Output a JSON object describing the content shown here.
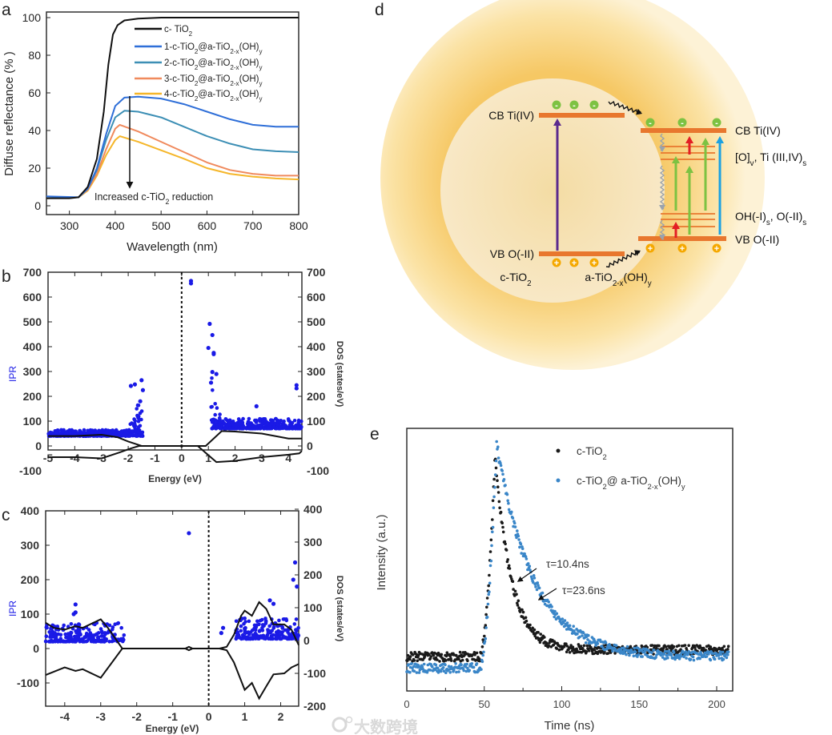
{
  "panel_letters": {
    "a": "a",
    "b": "b",
    "c": "c",
    "d": "d",
    "e": "e"
  },
  "watermark": "大数跨境",
  "chart_data": [
    {
      "id": "a",
      "type": "line",
      "xlabel": "Wavelength (nm)",
      "ylabel": "Diffuse reflectance (% )",
      "xlim": [
        250,
        800
      ],
      "ylim": [
        -5,
        103
      ],
      "xticks": [
        300,
        400,
        500,
        600,
        700,
        800
      ],
      "yticks": [
        0,
        20,
        40,
        60,
        80,
        100
      ],
      "legend_position": "top-right",
      "annotation": [
        [
          "Increased c-TiO",
          ""
        ],
        [
          "2",
          "sub"
        ],
        [
          " reduction",
          ""
        ]
      ],
      "series": [
        {
          "name": [
            [
              "c- TiO",
              ""
            ],
            [
              "2",
              "sub"
            ]
          ],
          "color": "#111111",
          "points": [
            [
              250,
              4
            ],
            [
              300,
              4
            ],
            [
              320,
              4.5
            ],
            [
              340,
              10
            ],
            [
              360,
              25
            ],
            [
              375,
              50
            ],
            [
              385,
              75
            ],
            [
              395,
              91
            ],
            [
              405,
              96
            ],
            [
              420,
              98.5
            ],
            [
              450,
              99.5
            ],
            [
              500,
              100
            ],
            [
              650,
              100
            ],
            [
              800,
              100
            ]
          ]
        },
        {
          "name": [
            [
              "1-c-TiO",
              ""
            ],
            [
              "2",
              "sub"
            ],
            [
              "@a-TiO",
              ""
            ],
            [
              "2-x",
              "sub"
            ],
            [
              "(OH)",
              ""
            ],
            [
              "y",
              "sub"
            ]
          ],
          "color": "#2f6fd8",
          "points": [
            [
              250,
              5
            ],
            [
              320,
              4.5
            ],
            [
              340,
              9
            ],
            [
              360,
              20
            ],
            [
              380,
              38
            ],
            [
              400,
              53
            ],
            [
              420,
              57.5
            ],
            [
              450,
              58
            ],
            [
              500,
              57
            ],
            [
              550,
              54
            ],
            [
              600,
              50
            ],
            [
              650,
              46
            ],
            [
              700,
              43
            ],
            [
              750,
              42
            ],
            [
              800,
              42
            ]
          ]
        },
        {
          "name": [
            [
              "2-c-TiO",
              ""
            ],
            [
              "2",
              "sub"
            ],
            [
              "@a-TiO",
              ""
            ],
            [
              "2-x",
              "sub"
            ],
            [
              "(OH)",
              ""
            ],
            [
              "y",
              "sub"
            ]
          ],
          "color": "#3d8fb5",
          "points": [
            [
              250,
              4
            ],
            [
              320,
              4.5
            ],
            [
              340,
              9
            ],
            [
              360,
              19
            ],
            [
              380,
              35
            ],
            [
              400,
              47
            ],
            [
              420,
              50.5
            ],
            [
              450,
              50
            ],
            [
              500,
              47
            ],
            [
              550,
              42
            ],
            [
              600,
              37
            ],
            [
              650,
              33
            ],
            [
              700,
              30
            ],
            [
              750,
              29
            ],
            [
              800,
              28.5
            ]
          ]
        },
        {
          "name": [
            [
              "3-c-TiO",
              ""
            ],
            [
              "2",
              "sub"
            ],
            [
              "@a-TiO",
              ""
            ],
            [
              "2-x",
              "sub"
            ],
            [
              "(OH)",
              ""
            ],
            [
              "y",
              "sub"
            ]
          ],
          "color": "#f08a5d",
          "points": [
            [
              250,
              4
            ],
            [
              320,
              4.5
            ],
            [
              340,
              8.5
            ],
            [
              360,
              17
            ],
            [
              380,
              30
            ],
            [
              400,
              41
            ],
            [
              410,
              43
            ],
            [
              450,
              39.5
            ],
            [
              500,
              34
            ],
            [
              550,
              28.5
            ],
            [
              600,
              23
            ],
            [
              650,
              19
            ],
            [
              700,
              17
            ],
            [
              750,
              16
            ],
            [
              800,
              16
            ]
          ]
        },
        {
          "name": [
            [
              "4-c-TiO",
              ""
            ],
            [
              "2",
              "sub"
            ],
            [
              "@a-TiO",
              ""
            ],
            [
              "2-x",
              "sub"
            ],
            [
              "(OH)",
              ""
            ],
            [
              "y",
              "sub"
            ]
          ],
          "color": "#f5b62a",
          "points": [
            [
              250,
              4
            ],
            [
              320,
              4.5
            ],
            [
              340,
              8
            ],
            [
              360,
              16
            ],
            [
              380,
              27
            ],
            [
              400,
              35
            ],
            [
              410,
              37
            ],
            [
              450,
              34
            ],
            [
              500,
              29.5
            ],
            [
              550,
              25
            ],
            [
              600,
              20
            ],
            [
              650,
              17
            ],
            [
              700,
              15.5
            ],
            [
              750,
              14.5
            ],
            [
              800,
              14
            ]
          ]
        }
      ]
    },
    {
      "id": "b",
      "type": "scatter",
      "xlabel": "Energy (eV)",
      "ylabel_left": "IPR",
      "ylabel_right": "DOS (states/eV)",
      "xlim": [
        -5,
        4.5
      ],
      "ylim": [
        -17,
        700
      ],
      "xticks": [
        -5,
        -4,
        -3,
        -2,
        -1,
        0,
        1,
        2,
        3,
        4
      ],
      "yticks": [
        -100,
        0,
        100,
        200,
        300,
        400,
        500,
        600,
        700
      ],
      "fermi_level": 0,
      "ipr_color": "#1a1ae6",
      "ipr_bands": [
        {
          "from": -5,
          "to": -1.45,
          "base": 40,
          "spread": 25,
          "rise_to": 230,
          "rise_start": -2.3,
          "rise_side": "right"
        },
        {
          "from": 1.1,
          "to": 4.5,
          "base": 70,
          "spread": 40,
          "rise_to": 280,
          "rise_start": 1.6,
          "rise_side": "left"
        }
      ],
      "ipr_outliers": [
        [
          0.35,
          665
        ],
        [
          0.35,
          655
        ],
        [
          1.05,
          492
        ],
        [
          1.15,
          447
        ],
        [
          1.0,
          395
        ],
        [
          1.2,
          375
        ],
        [
          1.2,
          370
        ],
        [
          1.15,
          298
        ],
        [
          1.3,
          290
        ],
        [
          1.1,
          255
        ],
        [
          -1.5,
          265
        ],
        [
          -1.75,
          248
        ],
        [
          -1.9,
          242
        ],
        [
          -1.45,
          225
        ],
        [
          -1.55,
          180
        ],
        [
          4.3,
          245
        ],
        [
          4.3,
          232
        ],
        [
          2.8,
          160
        ]
      ],
      "dos_up": [
        [
          -5,
          40
        ],
        [
          -4,
          40
        ],
        [
          -3,
          45
        ],
        [
          -2.4,
          35
        ],
        [
          -2,
          18
        ],
        [
          -1.6,
          4
        ],
        [
          -1.5,
          0
        ],
        [
          -0.05,
          0
        ],
        [
          0,
          3
        ],
        [
          0.05,
          0
        ],
        [
          0.9,
          0
        ],
        [
          1.5,
          60
        ],
        [
          2,
          58
        ],
        [
          3,
          50
        ],
        [
          4,
          30
        ],
        [
          4.5,
          30
        ]
      ],
      "dos_down": [
        [
          -5,
          -45
        ],
        [
          -4,
          -45
        ],
        [
          -3,
          -50
        ],
        [
          -2.3,
          -25
        ],
        [
          -1.9,
          -10
        ],
        [
          -1.6,
          0
        ],
        [
          -0.05,
          0
        ],
        [
          0,
          -3
        ],
        [
          0.05,
          0
        ],
        [
          0.6,
          0
        ],
        [
          1.3,
          -65
        ],
        [
          2,
          -60
        ],
        [
          3,
          -45
        ],
        [
          4,
          -35
        ],
        [
          4.4,
          -30
        ],
        [
          4.5,
          -20
        ]
      ]
    },
    {
      "id": "c",
      "type": "scatter",
      "xlabel": "Energy (eV)",
      "ylabel_left": "IPR",
      "ylabel_right": "DOS (states/eV)",
      "xlim": [
        -4.53,
        2.5
      ],
      "ylim": [
        -167,
        400
      ],
      "xticks": [
        -4,
        -3,
        -2,
        -1,
        0,
        1,
        2
      ],
      "yticks_left": [
        -100,
        0,
        100,
        200,
        300,
        400
      ],
      "yticks_right": [
        -200,
        -100,
        0,
        100,
        200,
        300,
        400
      ],
      "fermi_level": 0,
      "ipr_color": "#1a1ae6",
      "ipr_bands": [
        {
          "from": -4.53,
          "to": -2.35,
          "base": 20,
          "spread": 55
        },
        {
          "from": 0.75,
          "to": 2.5,
          "base": 28,
          "spread": 60
        }
      ],
      "ipr_outliers": [
        [
          -0.55,
          335
        ],
        [
          2.4,
          250
        ],
        [
          2.35,
          200
        ],
        [
          2.45,
          180
        ],
        [
          -3.7,
          128
        ],
        [
          -3.7,
          105
        ],
        [
          -3.75,
          100
        ],
        [
          0.35,
          45
        ],
        [
          0.4,
          60
        ],
        [
          1.7,
          140
        ],
        [
          1.8,
          130
        ]
      ],
      "dos_up": [
        [
          -4.53,
          75
        ],
        [
          -4.3,
          60
        ],
        [
          -4,
          55
        ],
        [
          -3.7,
          65
        ],
        [
          -3.5,
          60
        ],
        [
          -3,
          85
        ],
        [
          -2.8,
          60
        ],
        [
          -2.4,
          0
        ],
        [
          -0.65,
          0
        ],
        [
          -0.55,
          5
        ],
        [
          -0.45,
          0
        ],
        [
          0.3,
          0
        ],
        [
          0.5,
          5
        ],
        [
          0.7,
          40
        ],
        [
          0.9,
          95
        ],
        [
          1,
          110
        ],
        [
          1.2,
          95
        ],
        [
          1.4,
          135
        ],
        [
          1.6,
          115
        ],
        [
          1.8,
          70
        ],
        [
          2.1,
          70
        ],
        [
          2.3,
          55
        ],
        [
          2.5,
          10
        ]
      ],
      "dos_down": [
        [
          -4.53,
          -77
        ],
        [
          -4,
          -55
        ],
        [
          -3.7,
          -65
        ],
        [
          -3.5,
          -60
        ],
        [
          -3,
          -85
        ],
        [
          -2.4,
          0
        ],
        [
          -0.65,
          0
        ],
        [
          -0.55,
          -5
        ],
        [
          -0.45,
          0
        ],
        [
          0.3,
          0
        ],
        [
          0.5,
          -5
        ],
        [
          0.7,
          -40
        ],
        [
          1,
          -120
        ],
        [
          1.2,
          -100
        ],
        [
          1.4,
          -145
        ],
        [
          1.6,
          -110
        ],
        [
          1.8,
          -75
        ],
        [
          2.1,
          -72
        ],
        [
          2.3,
          -55
        ],
        [
          2.5,
          -45
        ]
      ]
    },
    {
      "id": "e",
      "type": "scatter",
      "xlabel": "Time (ns)",
      "ylabel": "Intensity (a.u.)",
      "xlim": [
        0,
        210
      ],
      "ylim": [
        -0.1,
        1.05
      ],
      "xticks": [
        0,
        50,
        100,
        150,
        200
      ],
      "legend_position": "top-right",
      "series": [
        {
          "name": [
            [
              "c-TiO",
              ""
            ],
            [
              "2",
              "sub"
            ]
          ],
          "color": "#1a1a1a",
          "baseline": 0.05,
          "tail": 0.08,
          "peak_time": 57,
          "peak": 0.93,
          "rise_start": 47,
          "tau_ns": 10.4
        },
        {
          "name": [
            [
              "c-TiO",
              ""
            ],
            [
              "2",
              "sub"
            ],
            [
              "@ a-TiO",
              ""
            ],
            [
              "2-x",
              "sub"
            ],
            [
              "(OH)",
              ""
            ],
            [
              "y",
              "sub"
            ]
          ],
          "color": "#3a86c8",
          "baseline": 0.0,
          "tail": 0.05,
          "peak_time": 58,
          "peak": 0.98,
          "rise_start": 47,
          "tau_ns": 23.6
        }
      ],
      "annotations": [
        "τ=10.4ns",
        "τ=23.6ns"
      ]
    }
  ],
  "diagram_d": {
    "left_cb": "CB Ti(IV)",
    "left_vb": "VB O(-II)",
    "right_cb": "CB Ti(IV)",
    "right_upper_states": [
      [
        "[O]",
        ""
      ],
      [
        "v",
        "sub"
      ],
      [
        ", Ti (III,IV)",
        ""
      ],
      [
        "s",
        "sub"
      ]
    ],
    "right_lower_states": [
      [
        "OH(-I)",
        ""
      ],
      [
        "s",
        "sub"
      ],
      [
        ", O(-II)",
        ""
      ],
      [
        "s",
        "sub"
      ]
    ],
    "right_vb": "VB O(-II)",
    "core_label": [
      [
        "c-TiO",
        ""
      ],
      [
        "2",
        "sub"
      ]
    ],
    "shell_label": [
      [
        "a-TiO",
        ""
      ],
      [
        "2-x",
        "sub"
      ],
      [
        "(OH)",
        ""
      ],
      [
        "y",
        "sub"
      ]
    ],
    "electron_symbol": "-",
    "hole_symbol": "+",
    "colors": {
      "band": "#e8772e",
      "electron": "#7dc242",
      "hole": "#f5a800",
      "red": "#e31e24",
      "green": "#7dc242",
      "blue": "#1ba1e2",
      "purple": "#5b2a8e",
      "relax": "#9aa3ad"
    }
  }
}
